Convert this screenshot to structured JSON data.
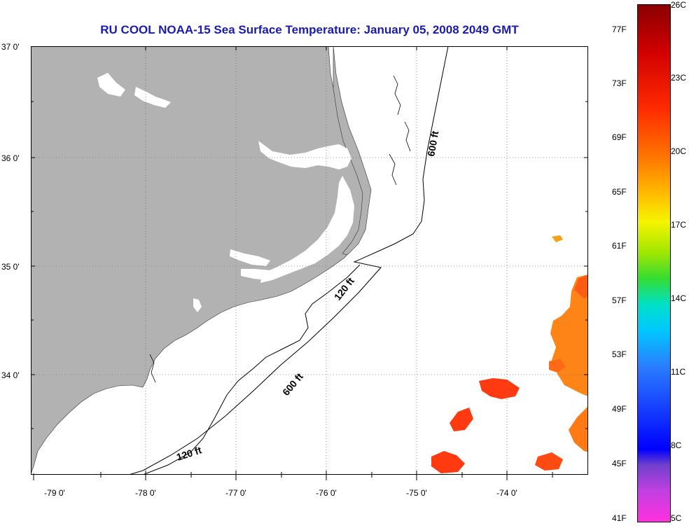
{
  "title": "RU COOL  NOAA-15  Sea Surface Temperature:  January 05, 2008 2049 GMT",
  "map": {
    "lat_labels": [
      "37 0'",
      "36 0'",
      "35 0'",
      "34 0'"
    ],
    "lon_labels": [
      "-79 0'",
      "-78 0'",
      "-77 0'",
      "-76 0'",
      "-75 0'",
      "-74 0'"
    ],
    "contours": [
      {
        "label": "600 ft",
        "name": "600-ft-isobath"
      },
      {
        "label": "120 ft",
        "name": "120-ft-isobath"
      },
      {
        "label": "120 ft",
        "name": "120-ft-isobath"
      },
      {
        "label": "600 ft",
        "name": "600-ft-isobath"
      }
    ],
    "colors": {
      "land": "#b2b2b2",
      "water": "#ffffff",
      "title": "#1b1bb0"
    }
  },
  "colorbar": {
    "fahrenheit": [
      "77F",
      "73F",
      "69F",
      "65F",
      "61F",
      "57F",
      "53F",
      "49F",
      "45F",
      "41F"
    ],
    "celsius": [
      "26C",
      "23C",
      "20C",
      "17C",
      "14C",
      "11C",
      "8C",
      "5C"
    ]
  }
}
